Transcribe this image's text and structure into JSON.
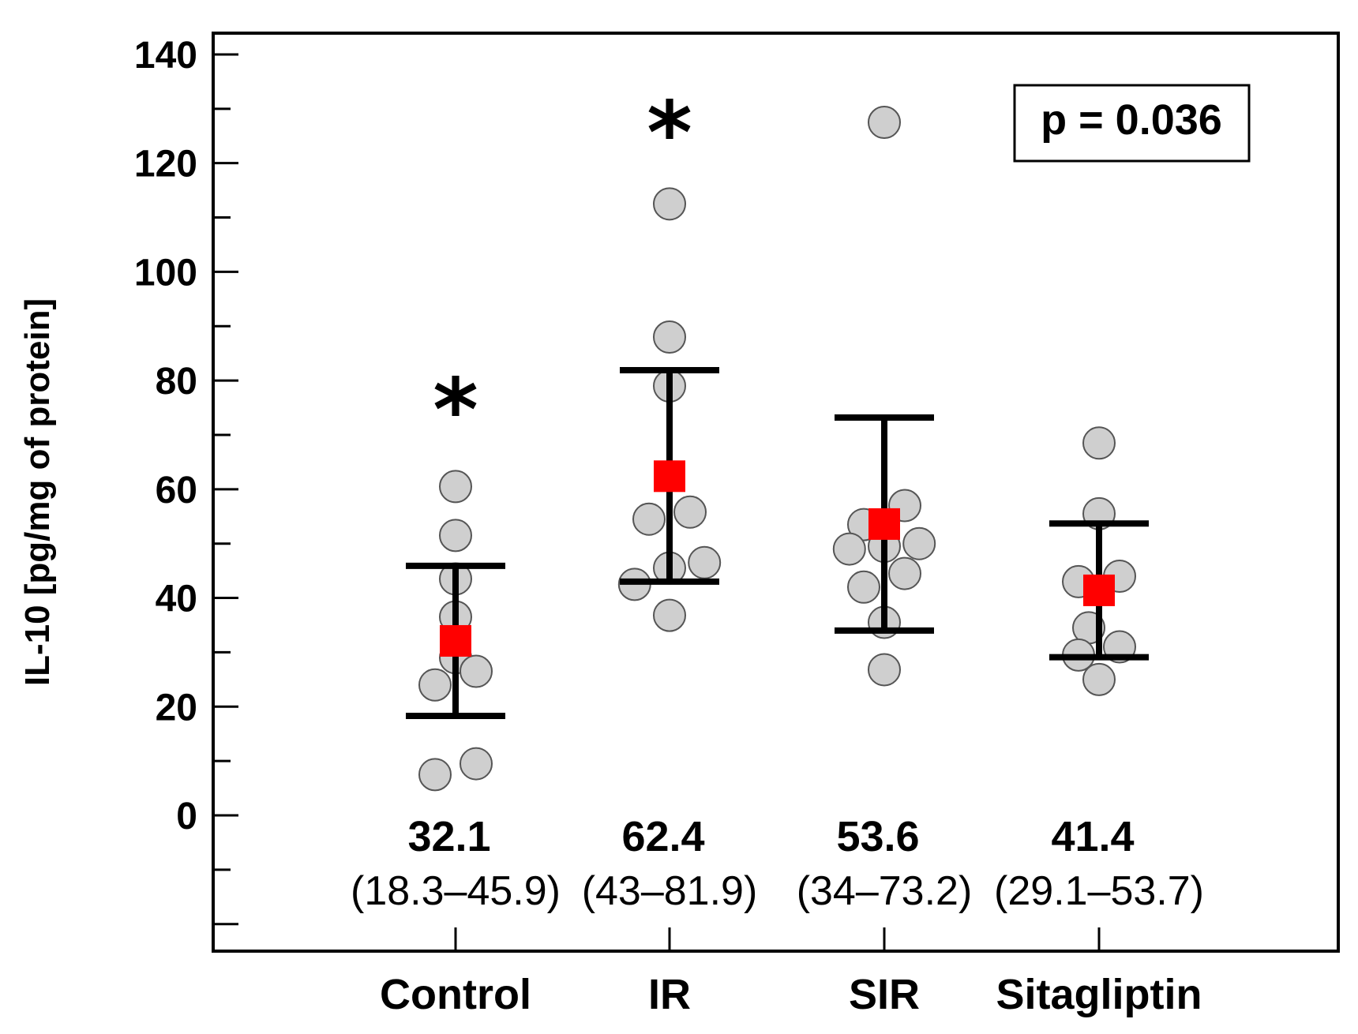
{
  "chart_data": {
    "type": "scatter",
    "title": "",
    "xlabel": "",
    "ylabel": "IL-10 [pg/mg of protein]",
    "ylim": [
      -25,
      145
    ],
    "yticks": [
      0,
      20,
      40,
      60,
      80,
      100,
      120,
      140
    ],
    "p_value_label": "p = 0.036",
    "colors": {
      "point_fill": "#cfcfcf",
      "point_stroke": "#555555",
      "mean": "#ff0000",
      "errorbar": "#000000"
    },
    "groups": [
      {
        "name": "Control",
        "mean": 32.1,
        "ci_low": 18.3,
        "ci_high": 45.9,
        "mean_label": "32.1",
        "ci_label": "(18.3–45.9)",
        "significance": "*",
        "star_y": 76,
        "points": [
          {
            "y": 60.5,
            "dx": 0
          },
          {
            "y": 51.5,
            "dx": 0
          },
          {
            "y": 43.5,
            "dx": 0
          },
          {
            "y": 36.5,
            "dx": 0
          },
          {
            "y": 29,
            "dx": 0
          },
          {
            "y": 26.5,
            "dx": 1
          },
          {
            "y": 24,
            "dx": -1
          },
          {
            "y": 9.5,
            "dx": 1
          },
          {
            "y": 7.5,
            "dx": -1
          }
        ]
      },
      {
        "name": "IR",
        "mean": 62.4,
        "ci_low": 43,
        "ci_high": 81.9,
        "mean_label": "62.4",
        "ci_label": "(43–81.9)",
        "significance": "*",
        "star_y": 127,
        "points": [
          {
            "y": 112.5,
            "dx": 0
          },
          {
            "y": 88,
            "dx": 0
          },
          {
            "y": 79,
            "dx": 0
          },
          {
            "y": 55.8,
            "dx": 1
          },
          {
            "y": 54.5,
            "dx": -1
          },
          {
            "y": 46.5,
            "dx": 1.7
          },
          {
            "y": 45.5,
            "dx": 0
          },
          {
            "y": 42.5,
            "dx": -1.7
          },
          {
            "y": 36.8,
            "dx": 0
          }
        ]
      },
      {
        "name": "SIR",
        "mean": 53.6,
        "ci_low": 34,
        "ci_high": 73.2,
        "mean_label": "53.6",
        "ci_label": "(34–73.2)",
        "significance": "",
        "star_y": 0,
        "points": [
          {
            "y": 127.5,
            "dx": 0
          },
          {
            "y": 57,
            "dx": 1
          },
          {
            "y": 53.5,
            "dx": -1
          },
          {
            "y": 50,
            "dx": 1.7
          },
          {
            "y": 49.5,
            "dx": 0
          },
          {
            "y": 49,
            "dx": -1.7
          },
          {
            "y": 44.5,
            "dx": 1
          },
          {
            "y": 42,
            "dx": -1
          },
          {
            "y": 35.5,
            "dx": 0
          },
          {
            "y": 26.8,
            "dx": 0
          }
        ]
      },
      {
        "name": "Sitagliptin",
        "mean": 41.4,
        "ci_low": 29.1,
        "ci_high": 53.7,
        "mean_label": "41.4",
        "ci_label": "(29.1–53.7)",
        "significance": "",
        "star_y": 0,
        "points": [
          {
            "y": 68.5,
            "dx": 0
          },
          {
            "y": 55.5,
            "dx": 0
          },
          {
            "y": 44,
            "dx": 1
          },
          {
            "y": 43,
            "dx": -1
          },
          {
            "y": 34.5,
            "dx": -0.5
          },
          {
            "y": 31,
            "dx": 1
          },
          {
            "y": 29.5,
            "dx": -1
          },
          {
            "y": 25,
            "dx": 0
          }
        ]
      }
    ]
  }
}
